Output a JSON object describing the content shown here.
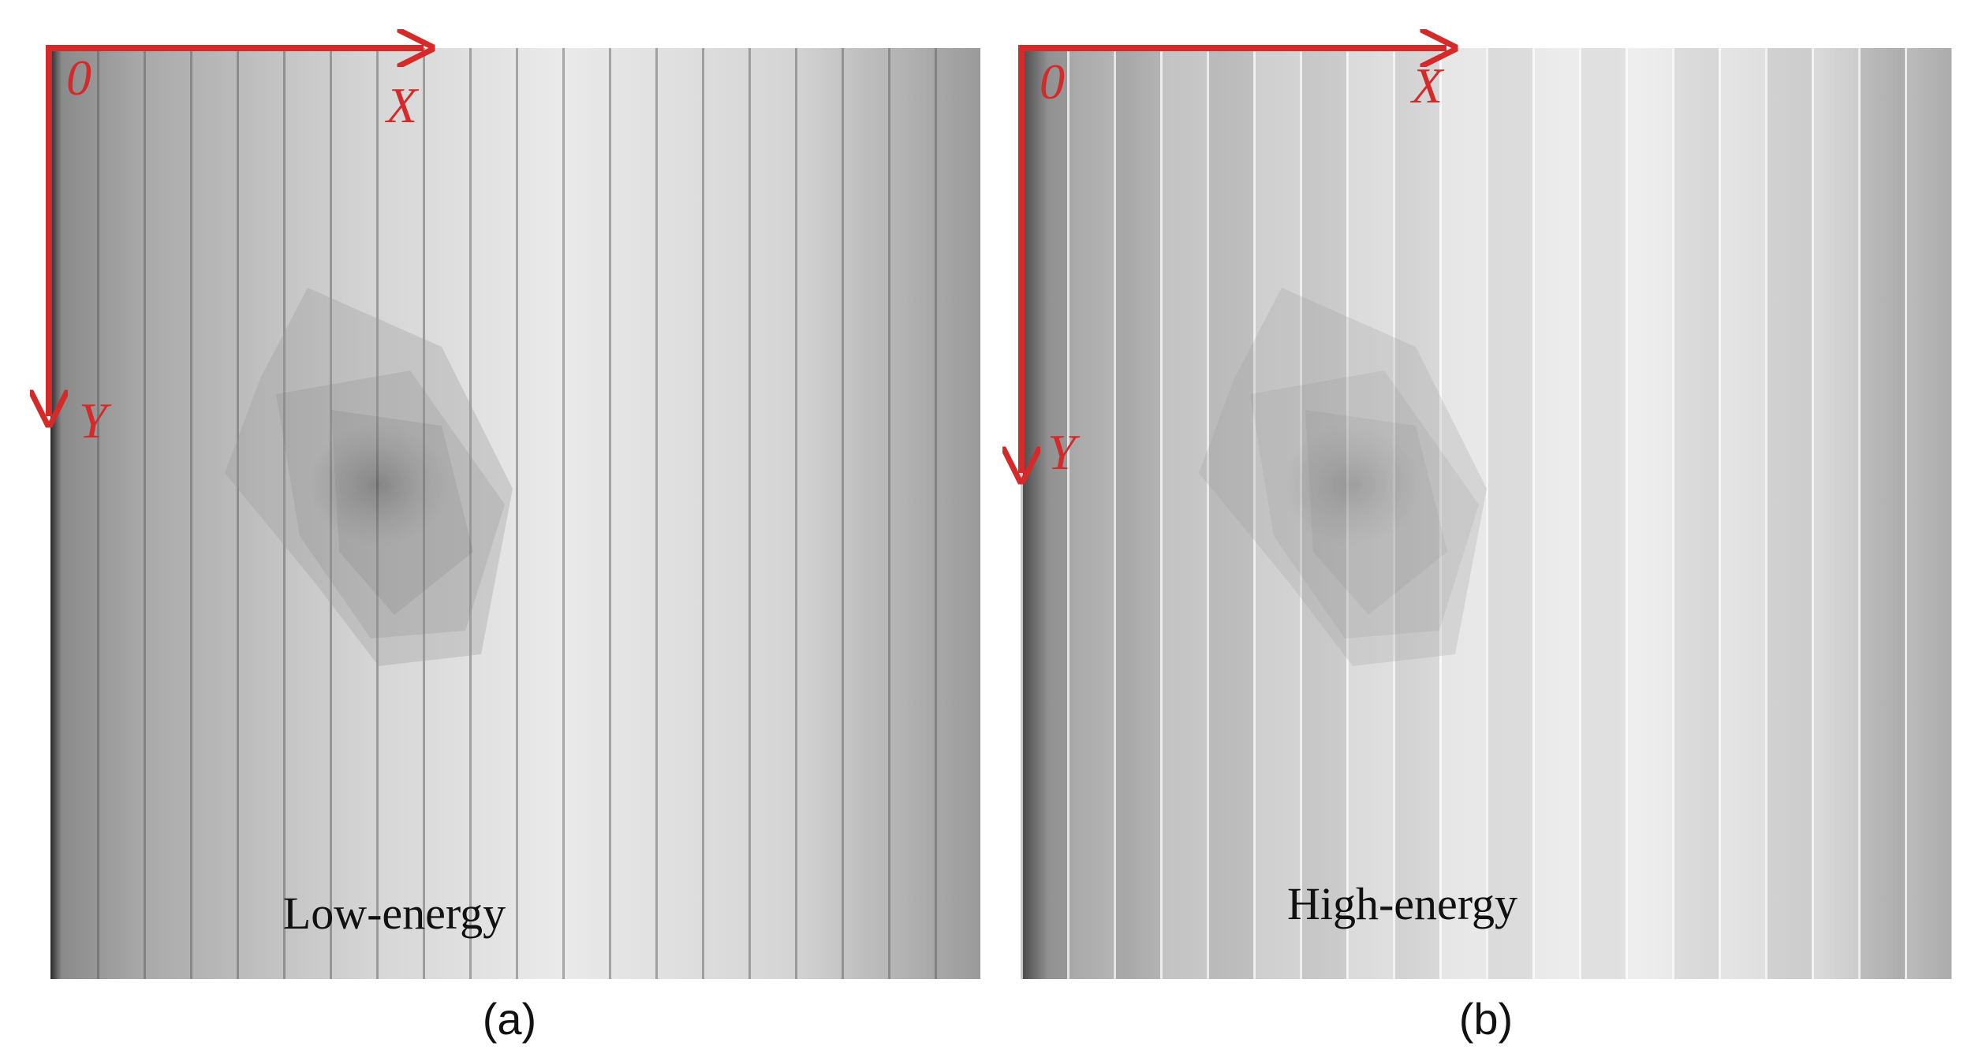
{
  "panels": [
    {
      "origin": "0",
      "x_axis": "X",
      "y_axis": "Y",
      "label": "Low-energy",
      "caption": "(a)"
    },
    {
      "origin": "0",
      "x_axis": "X",
      "y_axis": "Y",
      "label": "High-energy",
      "caption": "(b)"
    }
  ]
}
